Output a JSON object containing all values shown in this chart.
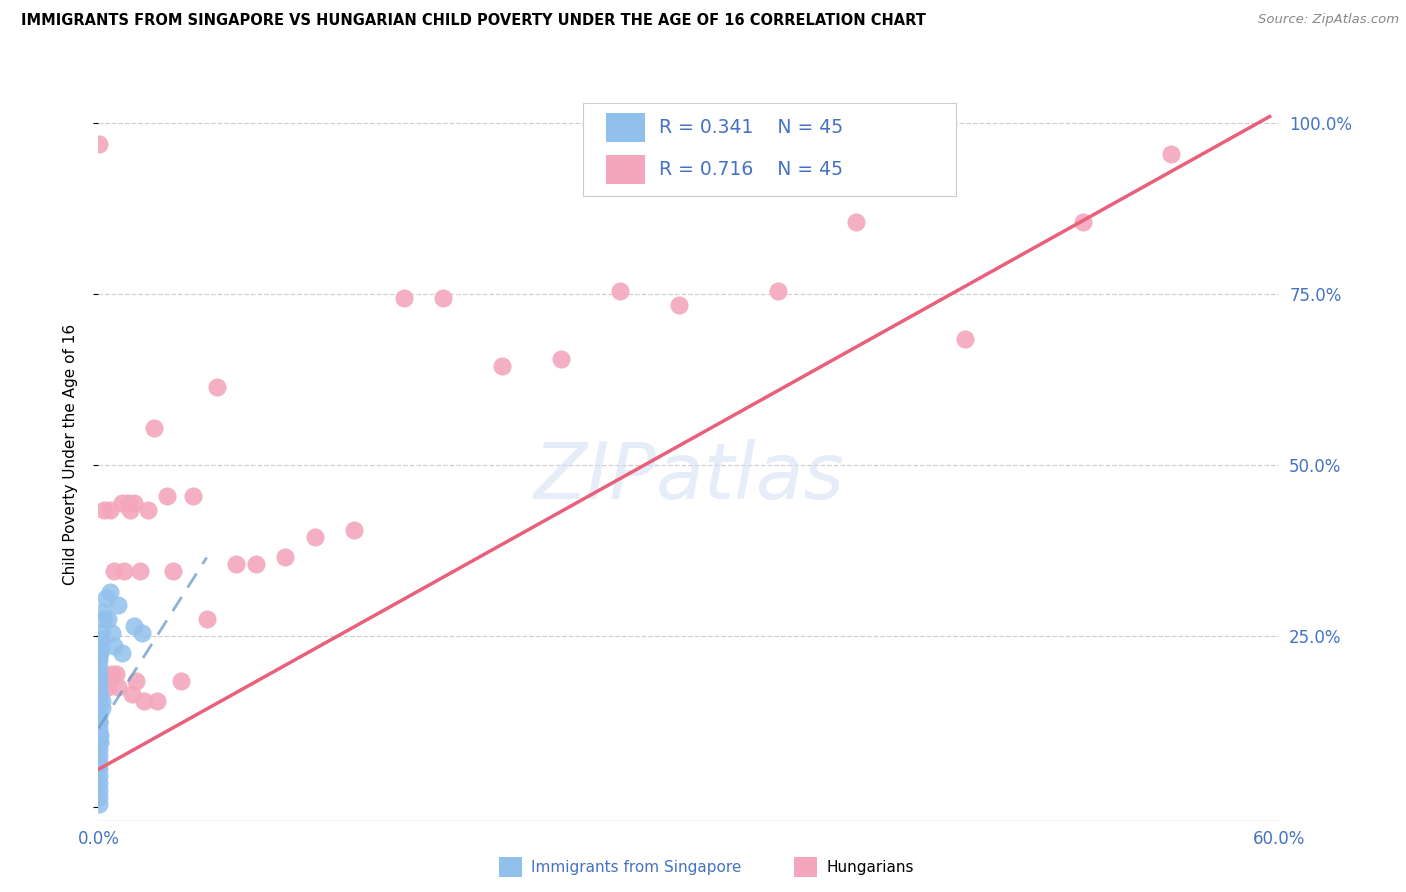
{
  "title": "IMMIGRANTS FROM SINGAPORE VS HUNGARIAN CHILD POVERTY UNDER THE AGE OF 16 CORRELATION CHART",
  "source": "Source: ZipAtlas.com",
  "ylabel": "Child Poverty Under the Age of 16",
  "xlim": [
    0.0,
    0.6
  ],
  "ylim": [
    -0.02,
    1.05
  ],
  "legend_r_blue": "R = 0.341",
  "legend_n_blue": "N = 45",
  "legend_r_pink": "R = 0.716",
  "legend_n_pink": "N = 45",
  "blue_color": "#92C0EC",
  "pink_color": "#F4A7BC",
  "blue_line_color": "#6699CC",
  "pink_line_color": "#E8607A",
  "text_blue": "#4472c4",
  "watermark": "ZIPatlas",
  "blue_scatter_x": [
    0.0003,
    0.0003,
    0.0003,
    0.0003,
    0.0003,
    0.0003,
    0.0003,
    0.0003,
    0.0003,
    0.0003,
    0.0003,
    0.0003,
    0.0003,
    0.0003,
    0.0003,
    0.0003,
    0.0003,
    0.0003,
    0.0003,
    0.0003,
    0.0003,
    0.0003,
    0.0003,
    0.0005,
    0.0005,
    0.0005,
    0.0008,
    0.0008,
    0.001,
    0.001,
    0.0012,
    0.0015,
    0.0018,
    0.002,
    0.002,
    0.003,
    0.004,
    0.005,
    0.006,
    0.007,
    0.008,
    0.01,
    0.012,
    0.018,
    0.022
  ],
  "blue_scatter_y": [
    0.175,
    0.165,
    0.155,
    0.145,
    0.135,
    0.125,
    0.115,
    0.105,
    0.095,
    0.085,
    0.075,
    0.065,
    0.055,
    0.045,
    0.035,
    0.025,
    0.015,
    0.005,
    0.195,
    0.185,
    0.205,
    0.215,
    0.225,
    0.235,
    0.165,
    0.125,
    0.245,
    0.105,
    0.225,
    0.095,
    0.255,
    0.235,
    0.145,
    0.285,
    0.155,
    0.275,
    0.305,
    0.275,
    0.315,
    0.255,
    0.235,
    0.295,
    0.225,
    0.265,
    0.255
  ],
  "pink_scatter_x": [
    0.0003,
    0.001,
    0.002,
    0.003,
    0.004,
    0.005,
    0.006,
    0.007,
    0.008,
    0.009,
    0.01,
    0.012,
    0.013,
    0.015,
    0.016,
    0.017,
    0.018,
    0.019,
    0.021,
    0.023,
    0.025,
    0.028,
    0.03,
    0.035,
    0.038,
    0.042,
    0.048,
    0.055,
    0.06,
    0.07,
    0.08,
    0.095,
    0.11,
    0.13,
    0.155,
    0.175,
    0.205,
    0.235,
    0.265,
    0.295,
    0.345,
    0.385,
    0.44,
    0.5,
    0.545
  ],
  "pink_scatter_y": [
    0.97,
    0.165,
    0.195,
    0.435,
    0.185,
    0.175,
    0.435,
    0.195,
    0.345,
    0.195,
    0.175,
    0.445,
    0.345,
    0.445,
    0.435,
    0.165,
    0.445,
    0.185,
    0.345,
    0.155,
    0.435,
    0.555,
    0.155,
    0.455,
    0.345,
    0.185,
    0.455,
    0.275,
    0.615,
    0.355,
    0.355,
    0.365,
    0.395,
    0.405,
    0.745,
    0.745,
    0.645,
    0.655,
    0.755,
    0.735,
    0.755,
    0.855,
    0.685,
    0.855,
    0.955
  ],
  "blue_trend_x": [
    0.0,
    0.055
  ],
  "blue_trend_y": [
    0.115,
    0.365
  ],
  "pink_trend_x": [
    0.0,
    0.595
  ],
  "pink_trend_y": [
    0.055,
    1.01
  ]
}
